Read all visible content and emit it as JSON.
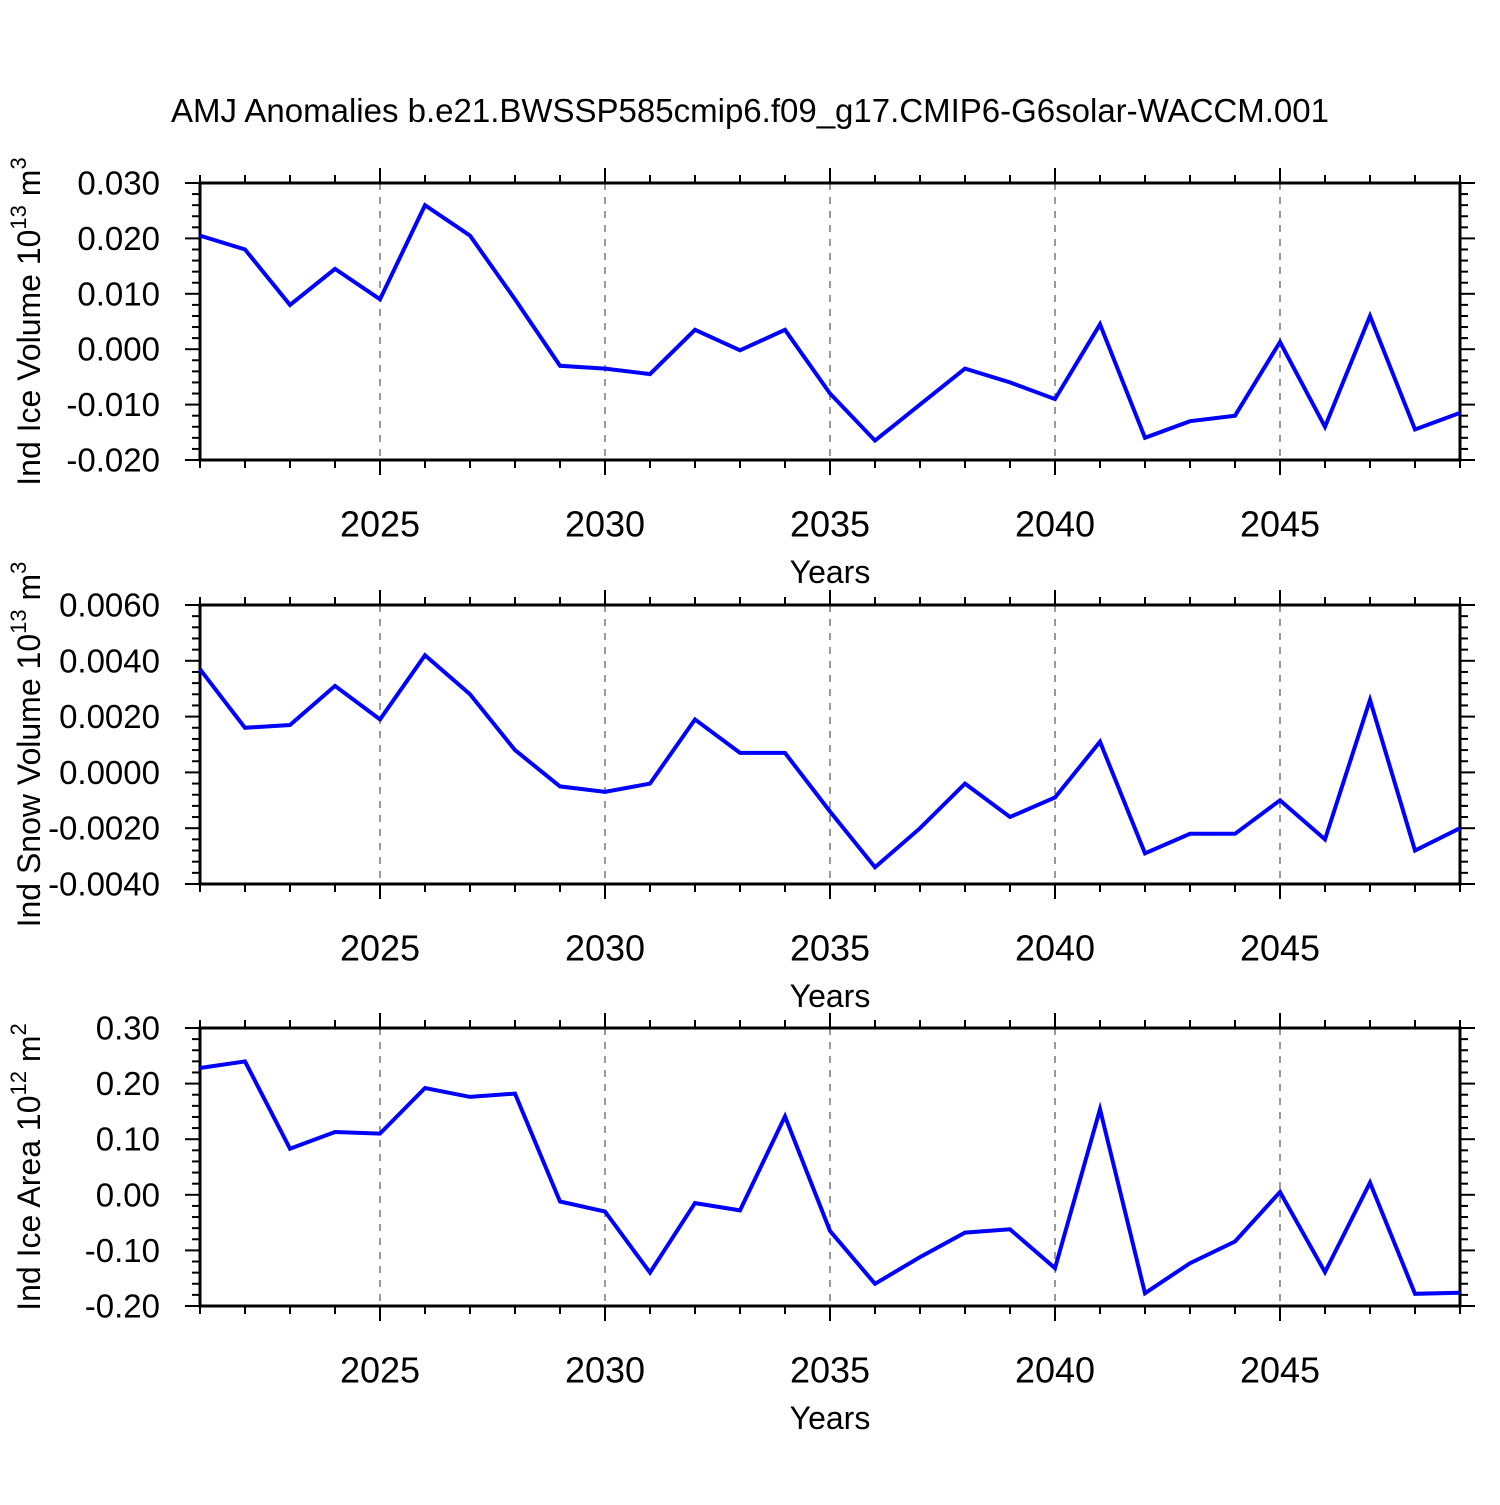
{
  "title": "AMJ Anomalies b.e21.BWSSP585cmip6.f09_g17.CMIP6-G6solar-WACCM.001",
  "line_color": "#0000ff",
  "axis_color": "#000000",
  "grid_color": "#808080",
  "chart_data": [
    {
      "type": "line",
      "name": "ice-volume",
      "ylabel": "Ind Ice Volume 10^13 m^3",
      "xlabel": "Years",
      "x": [
        2021,
        2022,
        2023,
        2024,
        2025,
        2026,
        2027,
        2028,
        2029,
        2030,
        2031,
        2032,
        2033,
        2034,
        2035,
        2036,
        2037,
        2038,
        2039,
        2040,
        2041,
        2042,
        2043,
        2044,
        2045,
        2046,
        2047,
        2048,
        2049
      ],
      "values": [
        0.0205,
        0.018,
        0.008,
        0.0145,
        0.009,
        0.026,
        0.0205,
        0.009,
        -0.003,
        -0.0035,
        -0.0045,
        0.0035,
        -0.0002,
        0.0035,
        -0.008,
        -0.0165,
        -0.01,
        -0.0035,
        -0.006,
        -0.009,
        0.0045,
        -0.016,
        -0.013,
        -0.012,
        0.0013,
        -0.014,
        0.006,
        -0.0145,
        -0.0115
      ],
      "xlim": [
        2021,
        2049
      ],
      "ylim": [
        -0.02,
        0.03
      ],
      "xticks": [
        2025,
        2030,
        2035,
        2040,
        2045
      ],
      "x_minor_step": 1,
      "yticks": [
        0.03,
        0.02,
        0.01,
        0.0,
        -0.01,
        -0.02
      ],
      "ytick_labels": [
        "0.030",
        "0.020",
        "0.010",
        "0.000",
        "-0.010",
        "-0.020"
      ],
      "y_minor_step": 0.002,
      "grid": "vertical dashed lines at major x ticks",
      "legend": "none"
    },
    {
      "type": "line",
      "name": "snow-volume",
      "ylabel": "Ind Snow Volume 10^13 m^3",
      "xlabel": "Years",
      "x": [
        2021,
        2022,
        2023,
        2024,
        2025,
        2026,
        2027,
        2028,
        2029,
        2030,
        2031,
        2032,
        2033,
        2034,
        2035,
        2036,
        2037,
        2038,
        2039,
        2040,
        2041,
        2042,
        2043,
        2044,
        2045,
        2046,
        2047,
        2048,
        2049
      ],
      "values": [
        0.0037,
        0.0016,
        0.0017,
        0.0031,
        0.0019,
        0.0042,
        0.0028,
        0.0008,
        -0.0005,
        -0.0007,
        -0.0004,
        0.0019,
        0.0007,
        0.0007,
        -0.0014,
        -0.0034,
        -0.002,
        -0.0004,
        -0.0016,
        -0.0009,
        0.0011,
        -0.0029,
        -0.0022,
        -0.0022,
        -0.001,
        -0.0024,
        0.0026,
        -0.0028,
        -0.002
      ],
      "xlim": [
        2021,
        2049
      ],
      "ylim": [
        -0.004,
        0.006
      ],
      "xticks": [
        2025,
        2030,
        2035,
        2040,
        2045
      ],
      "x_minor_step": 1,
      "yticks": [
        0.006,
        0.004,
        0.002,
        0.0,
        -0.002,
        -0.004
      ],
      "ytick_labels": [
        "0.0060",
        "0.0040",
        "0.0020",
        "0.0000",
        "-0.0020",
        "-0.0040"
      ],
      "y_minor_step": 0.0004,
      "grid": "vertical dashed lines at major x ticks",
      "legend": "none"
    },
    {
      "type": "line",
      "name": "ice-area",
      "ylabel": "Ind Ice Area 10^12 m^2",
      "xlabel": "Years",
      "x": [
        2021,
        2022,
        2023,
        2024,
        2025,
        2026,
        2027,
        2028,
        2029,
        2030,
        2031,
        2032,
        2033,
        2034,
        2035,
        2036,
        2037,
        2038,
        2039,
        2040,
        2041,
        2042,
        2043,
        2044,
        2045,
        2046,
        2047,
        2048,
        2049
      ],
      "values": [
        0.228,
        0.24,
        0.083,
        0.113,
        0.11,
        0.192,
        0.176,
        0.182,
        -0.012,
        -0.03,
        -0.14,
        -0.015,
        -0.028,
        0.141,
        -0.065,
        -0.16,
        -0.112,
        -0.068,
        -0.062,
        -0.132,
        0.154,
        -0.177,
        -0.123,
        -0.084,
        0.005,
        -0.139,
        0.022,
        -0.178,
        -0.176
      ],
      "xlim": [
        2021,
        2049
      ],
      "ylim": [
        -0.2,
        0.3
      ],
      "xticks": [
        2025,
        2030,
        2035,
        2040,
        2045
      ],
      "x_minor_step": 1,
      "yticks": [
        0.3,
        0.2,
        0.1,
        0.0,
        -0.1,
        -0.2
      ],
      "ytick_labels": [
        "0.30",
        "0.20",
        "0.10",
        "0.00",
        "-0.10",
        "-0.20"
      ],
      "y_minor_step": 0.02,
      "grid": "vertical dashed lines at major x ticks",
      "legend": "none"
    }
  ]
}
